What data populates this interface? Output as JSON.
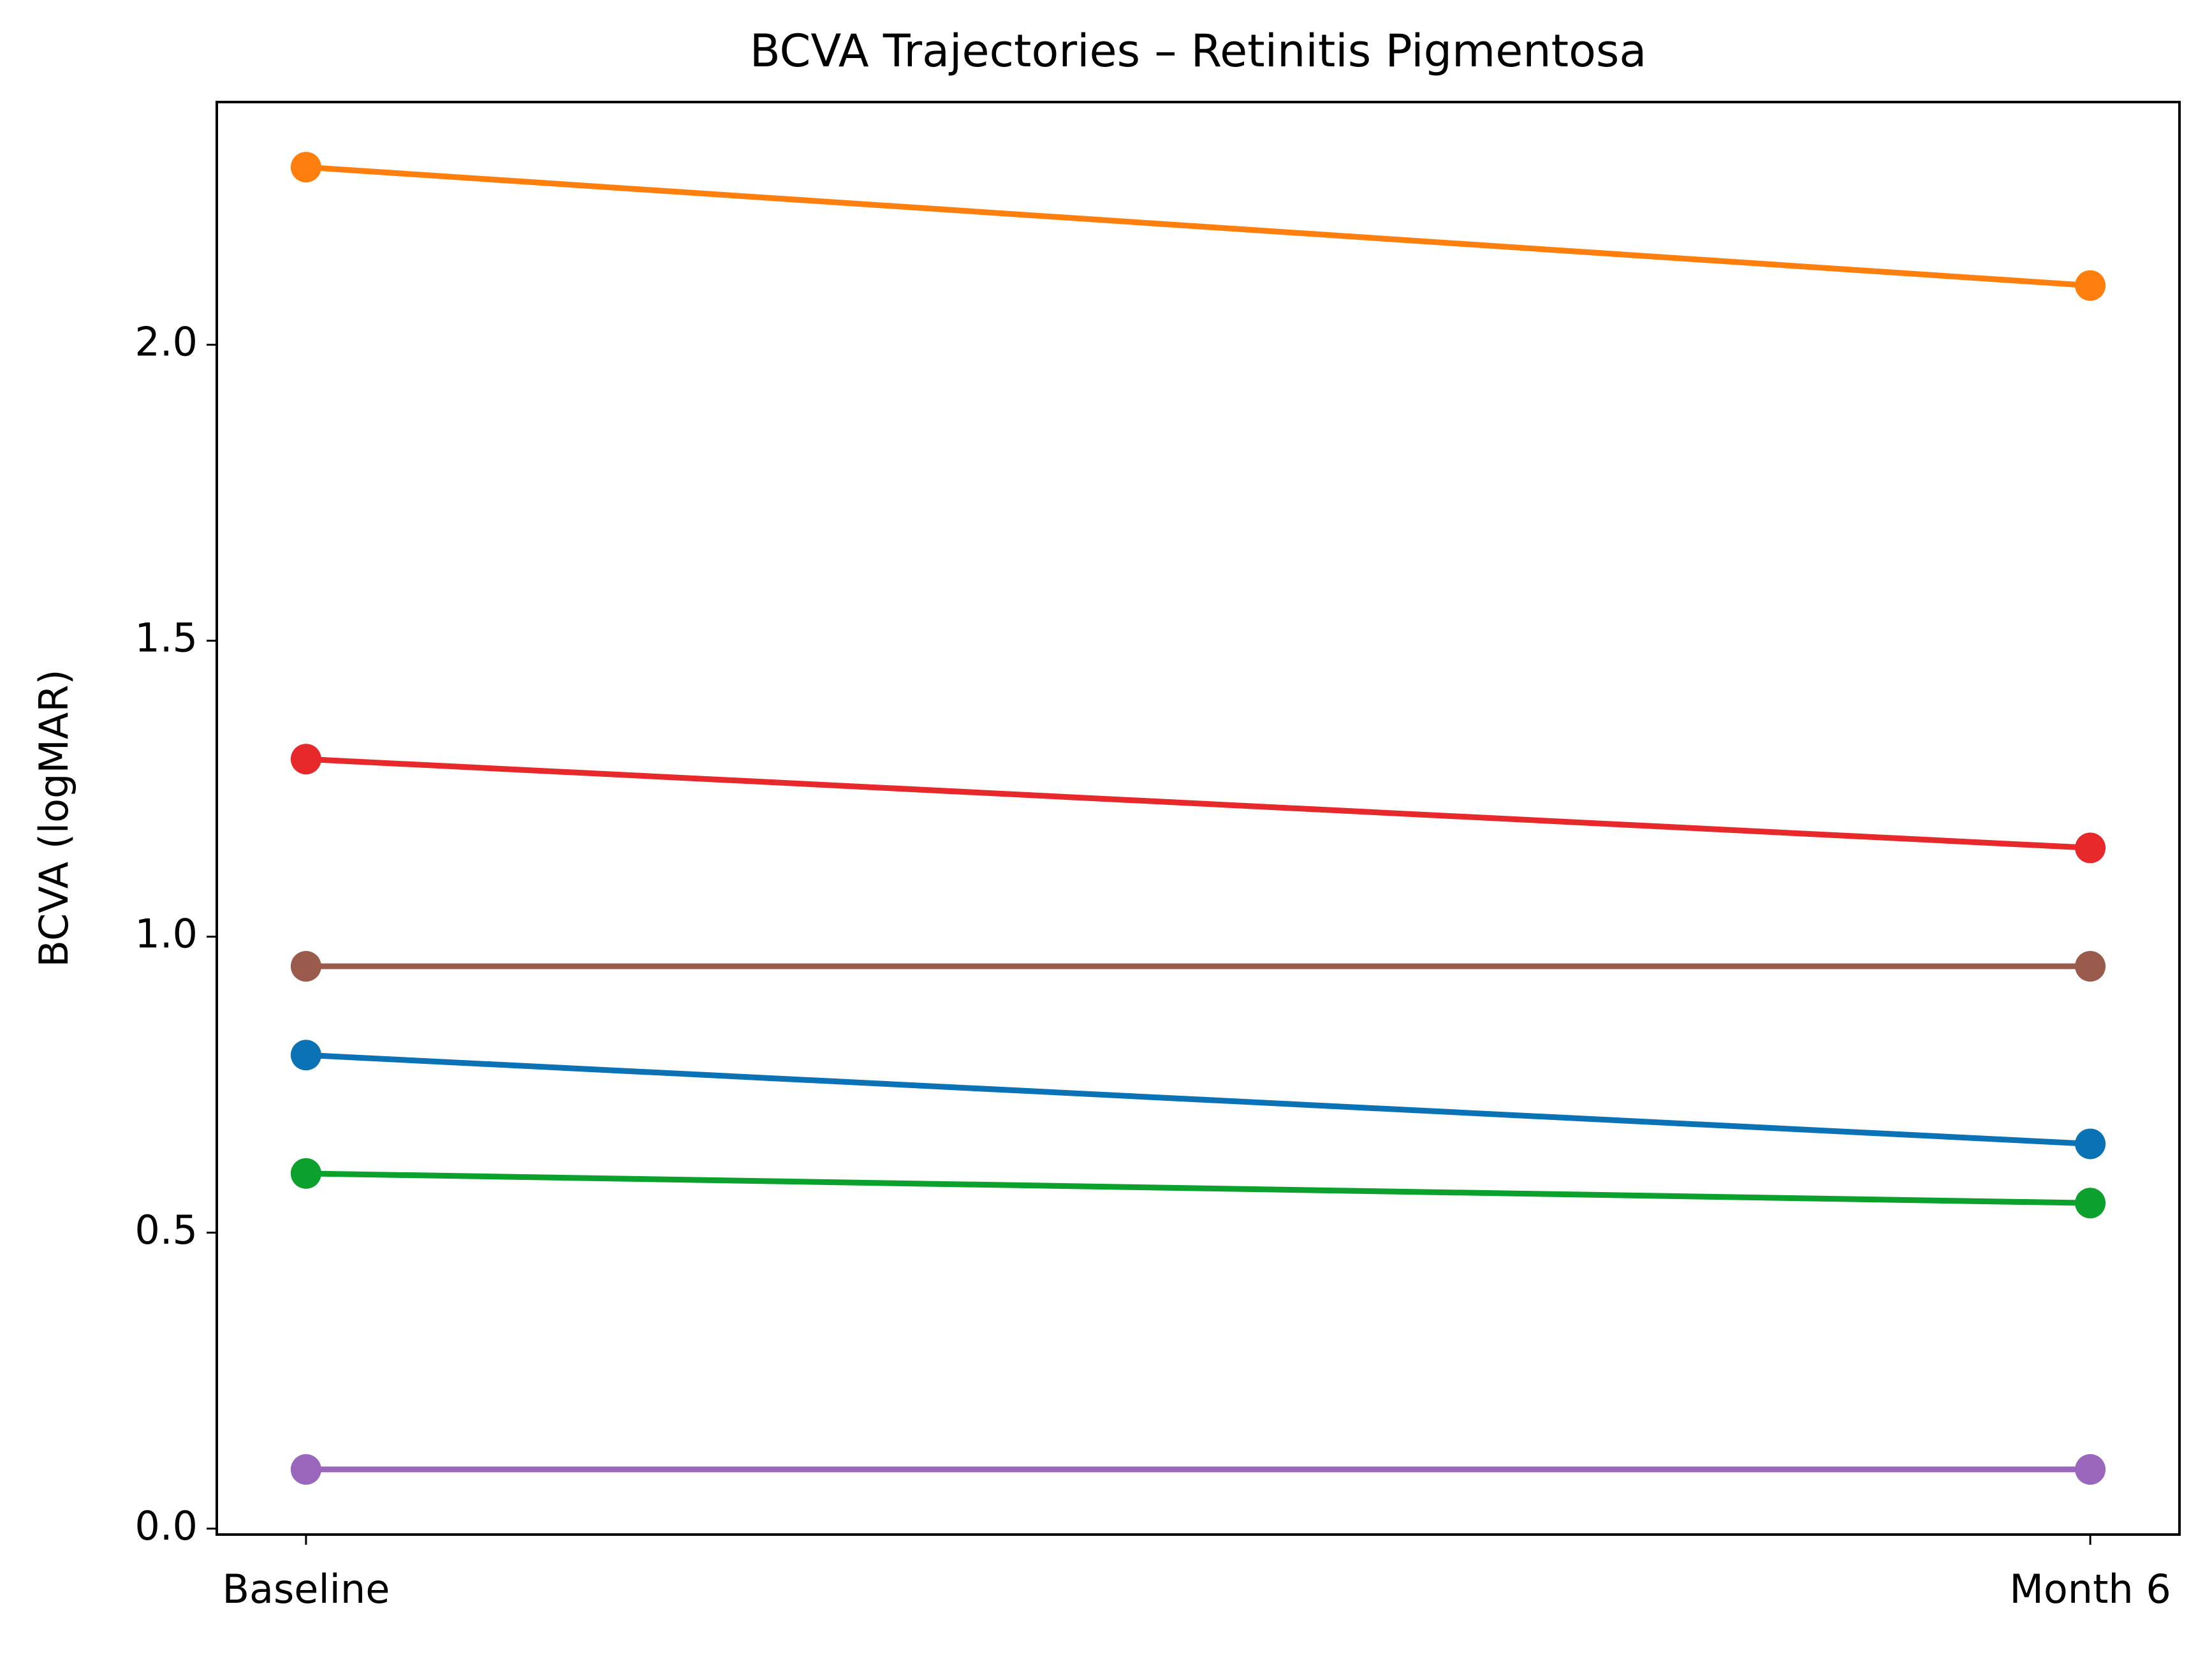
{
  "chart_data": {
    "type": "line",
    "title": "BCVA Trajectories – Retinitis Pigmentosa",
    "y_label": "BCVA (logMAR)",
    "categories": [
      "Baseline",
      "Month 6"
    ],
    "series": [
      {
        "color": "#0b72b5",
        "values": [
          0.8,
          0.65
        ]
      },
      {
        "color": "#ff7f0e",
        "values": [
          2.3,
          2.1
        ]
      },
      {
        "color": "#0ca02c",
        "values": [
          0.6,
          0.55
        ]
      },
      {
        "color": "#e8292c",
        "values": [
          1.3,
          1.15
        ]
      },
      {
        "color": "#9b67bd",
        "values": [
          0.1,
          0.1
        ]
      },
      {
        "color": "#9a5a4c",
        "values": [
          0.95,
          0.95
        ]
      }
    ],
    "ylim": [
      -0.01,
      2.41
    ],
    "yticks": [
      {
        "value": 0,
        "label": "0.0"
      },
      0.5,
      {
        "value": 1,
        "label": "1.0"
      },
      1.5,
      {
        "value": 2,
        "label": "2.0"
      }
    ],
    "grid": false
  }
}
